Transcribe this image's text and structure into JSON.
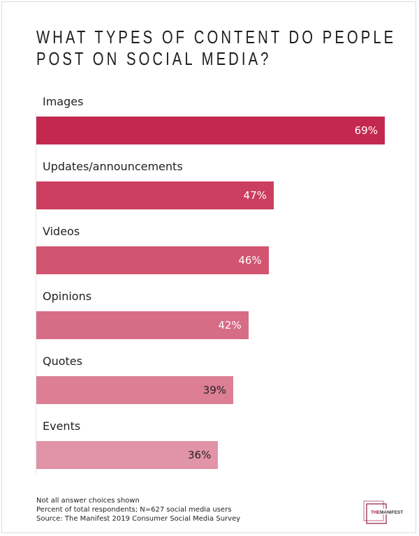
{
  "chart_data": {
    "type": "bar",
    "orientation": "horizontal",
    "title": "WHAT TYPES OF CONTENT DO PEOPLE POST ON SOCIAL MEDIA?",
    "title_lines": [
      "WHAT TYPES OF CONTENT DO PEOPLE",
      "POST ON SOCIAL MEDIA?"
    ],
    "categories": [
      "Images",
      "Updates/announcements",
      "Videos",
      "Opinions",
      "Quotes",
      "Events"
    ],
    "values": [
      69,
      47,
      46,
      42,
      39,
      36
    ],
    "labels": [
      "69%",
      "47%",
      "46%",
      "42%",
      "39%",
      "36%"
    ],
    "unit": "%",
    "xlim": [
      0,
      69
    ],
    "grid": false,
    "colors": [
      "#c4284f",
      "#cb3e60",
      "#d15571",
      "#d76c86",
      "#dc7f94",
      "#e194a7"
    ],
    "label_colors": [
      "#ffffff",
      "#ffffff",
      "#ffffff",
      "#ffffff",
      "#222222",
      "#222222"
    ]
  },
  "footer": {
    "notes": [
      "Not all answer choices shown",
      "Percent of total respondents; N=627 social media users",
      "Source: The Manifest 2019 Consumer Social Media Survey"
    ]
  },
  "logo": {
    "text": "THE MANIFEST",
    "the_color": "#a0203f",
    "frame_color": "#8a1c3a"
  }
}
